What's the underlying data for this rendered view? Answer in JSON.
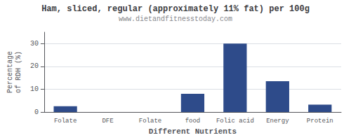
{
  "chart_data": {
    "type": "bar",
    "title": "Ham, sliced, regular (approximately 11% fat) per 100g",
    "subtitle": "www.dietandfitnesstoday.com",
    "xlabel": "Different Nutrients",
    "ylabel": "Percentage\nof RDH (%)",
    "categories": [
      "Folate",
      "DFE",
      "Folate",
      "food",
      "Folic acid",
      "Energy",
      "Protein"
    ],
    "values": [
      2.5,
      0.0,
      0.0,
      8.0,
      30.0,
      13.5,
      3.2
    ],
    "color": "#2e4b8a",
    "ylim": [
      0,
      35
    ],
    "yticks": [
      0,
      10,
      20,
      30
    ],
    "grid": true
  }
}
